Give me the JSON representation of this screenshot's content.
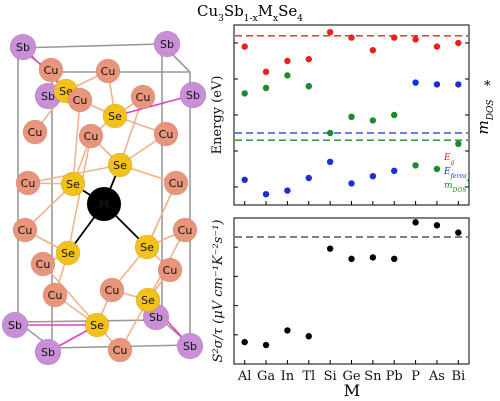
{
  "title": {
    "base": "Cu",
    "sub1": "3",
    "mid1": "Sb",
    "sub2": "1-x",
    "mid2": "M",
    "sub3": "x",
    "mid3": "Se",
    "sub4": "4"
  },
  "atoms": {
    "sb": "Sb",
    "cu": "Cu",
    "se": "Se",
    "m": "M"
  },
  "colors": {
    "sb": "#c98fd6",
    "cu": "#e9957c",
    "se": "#f2c21b",
    "m": "#000000",
    "bond_cu": "#f2b38a",
    "bond_sb": "#e040c8",
    "cell": "#9a9a9a",
    "eg": "#e8201f",
    "efermi": "#1a2fd6",
    "mdos": "#1a8a2a"
  },
  "top_panel": {
    "ylabel": "Energy (eV)",
    "right_label": "m",
    "right_label_sub": "DOS",
    "right_label_sup": "*",
    "legend": [
      "E_g",
      "E_fermi",
      "m*_DOS"
    ],
    "legend_parts": [
      {
        "main": "E",
        "sub": "g",
        "color": "eg"
      },
      {
        "main": "E",
        "sub": "fermi",
        "color": "efermi"
      },
      {
        "main": "m",
        "sub": "DOS",
        "sup": "*",
        "color": "mdos"
      }
    ]
  },
  "bottom_panel": {
    "ylabel": "S²σ/τ (μV cm⁻¹K⁻²s⁻¹)",
    "xlabel": "M"
  },
  "chart_data": {
    "type": "scatter",
    "categories": [
      "Al",
      "Ga",
      "In",
      "Tl",
      "Si",
      "Ge",
      "Sn",
      "Pb",
      "P",
      "As",
      "Bi"
    ],
    "top": {
      "units": "relative",
      "reference_lines": {
        "eg": 0.94,
        "efermi": 0.4,
        "mdos": 0.36
      },
      "series": [
        {
          "name": "E_g",
          "color": "eg",
          "values": [
            0.88,
            0.74,
            0.8,
            0.81,
            0.96,
            0.93,
            0.86,
            0.93,
            0.92,
            0.88,
            0.9
          ]
        },
        {
          "name": "E_fermi",
          "color": "efermi",
          "values": [
            0.14,
            0.06,
            0.08,
            0.15,
            0.24,
            0.12,
            0.16,
            0.19,
            0.68,
            0.67,
            0.67
          ]
        },
        {
          "name": "m*_DOS",
          "color": "mdos",
          "values": [
            0.62,
            0.65,
            0.72,
            0.66,
            0.4,
            0.49,
            0.47,
            0.5,
            0.22,
            0.2,
            0.34
          ]
        }
      ]
    },
    "bottom": {
      "units": "relative",
      "reference_line": 0.87,
      "series": [
        {
          "name": "S²σ/τ",
          "values": [
            0.15,
            0.13,
            0.23,
            0.19,
            0.79,
            0.72,
            0.73,
            0.72,
            0.97,
            0.95,
            0.9
          ]
        }
      ]
    }
  }
}
